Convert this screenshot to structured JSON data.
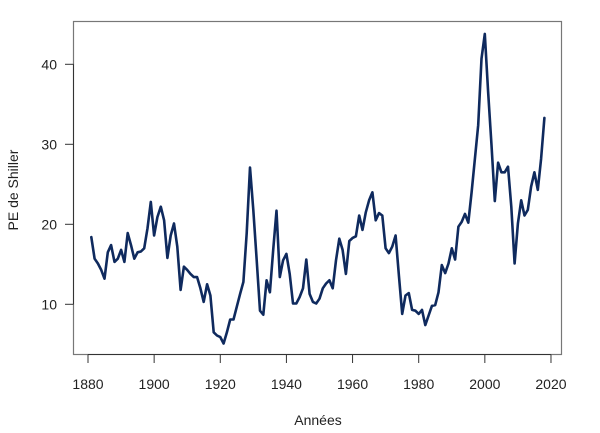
{
  "chart_data": {
    "type": "line",
    "title": "",
    "xlabel": "Années",
    "ylabel": "PE de Shiller",
    "xlim": [
      1876.3,
      2023.4
    ],
    "ylim": [
      3.7,
      45.4
    ],
    "x_ticks": [
      1880,
      1900,
      1920,
      1940,
      1960,
      1980,
      2000,
      2020
    ],
    "y_ticks": [
      10,
      20,
      30,
      40
    ],
    "grid": false,
    "legend": null,
    "line_color": "#0f2a5e",
    "series": [
      {
        "name": "PE de Shiller",
        "x": [
          1881,
          1882,
          1883,
          1884,
          1885,
          1886,
          1887,
          1888,
          1889,
          1890,
          1891,
          1892,
          1893,
          1894,
          1895,
          1896,
          1897,
          1898,
          1899,
          1900,
          1901,
          1902,
          1903,
          1904,
          1905,
          1906,
          1907,
          1908,
          1909,
          1910,
          1911,
          1912,
          1913,
          1914,
          1915,
          1916,
          1917,
          1918,
          1919,
          1920,
          1921,
          1922,
          1923,
          1924,
          1925,
          1926,
          1927,
          1928,
          1929,
          1930,
          1931,
          1932,
          1933,
          1934,
          1935,
          1936,
          1937,
          1938,
          1939,
          1940,
          1941,
          1942,
          1943,
          1944,
          1945,
          1946,
          1947,
          1948,
          1949,
          1950,
          1951,
          1952,
          1953,
          1954,
          1955,
          1956,
          1957,
          1958,
          1959,
          1960,
          1961,
          1962,
          1963,
          1964,
          1965,
          1966,
          1967,
          1968,
          1969,
          1970,
          1971,
          1972,
          1973,
          1974,
          1975,
          1976,
          1977,
          1978,
          1979,
          1980,
          1981,
          1982,
          1983,
          1984,
          1985,
          1986,
          1987,
          1988,
          1989,
          1990,
          1991,
          1992,
          1993,
          1994,
          1995,
          1996,
          1997,
          1998,
          1999,
          2000,
          2001,
          2002,
          2003,
          2004,
          2005,
          2006,
          2007,
          2008,
          2009,
          2010,
          2011,
          2012,
          2013,
          2014,
          2015,
          2016,
          2017,
          2018
        ],
        "values": [
          18.4,
          15.7,
          15.1,
          14.3,
          13.2,
          16.5,
          17.4,
          15.3,
          15.7,
          16.8,
          15.3,
          18.9,
          17.4,
          15.7,
          16.5,
          16.6,
          17.0,
          19.5,
          22.8,
          18.6,
          20.9,
          22.2,
          20.5,
          15.8,
          18.6,
          20.1,
          17.2,
          11.8,
          14.7,
          14.3,
          13.8,
          13.4,
          13.4,
          12.0,
          10.3,
          12.5,
          11.1,
          6.5,
          6.1,
          5.9,
          5.1,
          6.5,
          8.1,
          8.1,
          9.7,
          11.3,
          12.8,
          18.9,
          27.1,
          21.8,
          15.5,
          9.2,
          8.7,
          13.0,
          11.5,
          16.8,
          21.7,
          13.4,
          15.5,
          16.3,
          13.8,
          10.1,
          10.1,
          10.9,
          12.0,
          15.6,
          11.3,
          10.3,
          10.1,
          10.7,
          12.0,
          12.6,
          13.0,
          12.0,
          15.5,
          18.2,
          16.8,
          13.8,
          17.9,
          18.3,
          18.5,
          21.1,
          19.3,
          21.5,
          23.0,
          24.0,
          20.5,
          21.4,
          21.1,
          17.0,
          16.4,
          17.2,
          18.6,
          13.6,
          8.8,
          11.1,
          11.4,
          9.3,
          9.2,
          8.8,
          9.3,
          7.4,
          8.6,
          9.8,
          9.9,
          11.5,
          14.9,
          13.9,
          15.1,
          17.0,
          15.6,
          19.7,
          20.3,
          21.3,
          20.2,
          24.0,
          28.2,
          32.4,
          40.7,
          43.8,
          36.6,
          29.9,
          22.9,
          27.7,
          26.5,
          26.5,
          27.2,
          22.2,
          15.1,
          20.1,
          23.0,
          21.1,
          21.8,
          24.7,
          26.5,
          24.3,
          28.2,
          33.3
        ]
      }
    ]
  },
  "labels": {
    "xlabel": "Années",
    "ylabel": "PE de Shiller"
  }
}
